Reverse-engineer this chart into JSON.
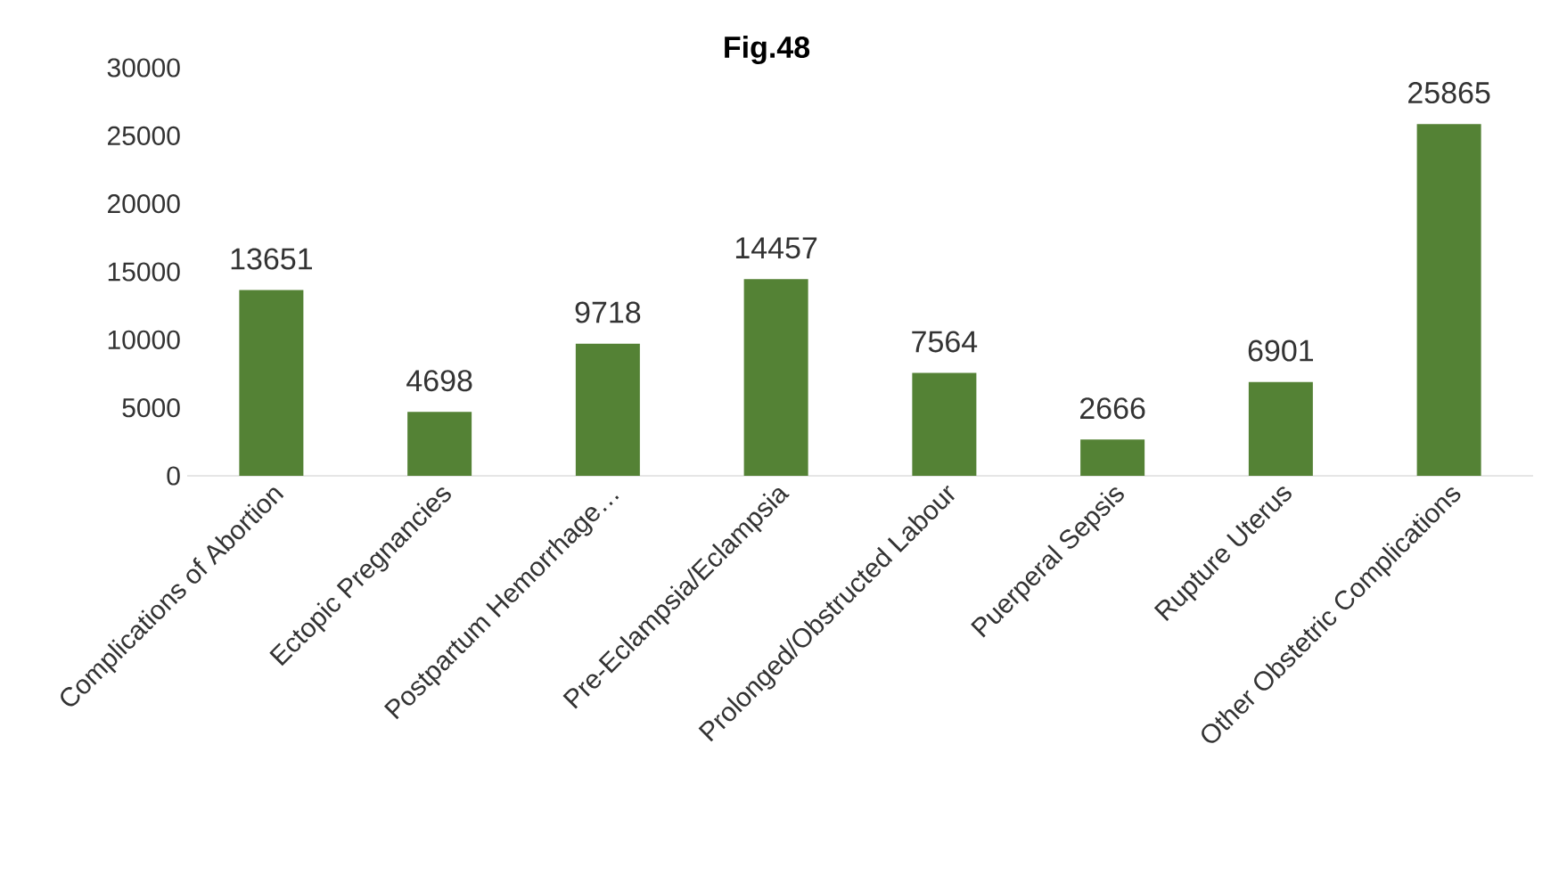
{
  "chart_data": {
    "type": "bar",
    "title": "**Fig.48**",
    "categories": [
      "Complications of Abortion",
      "Ectopic Pregnancies",
      "Postpartum Hemorrhage…",
      "Pre-Eclampsia/Eclampsia",
      "Prolonged/Obstructed Labour",
      "Puerperal Sepsis",
      "Rupture Uterus",
      "Other Obstetric Complications"
    ],
    "values": [
      13651,
      4698,
      9718,
      14457,
      7564,
      2666,
      6901,
      25865
    ],
    "color": "#548235",
    "data_labels": true,
    "ylim": [
      0,
      30000
    ],
    "yticks": [
      0,
      5000,
      10000,
      15000,
      20000,
      25000,
      30000
    ]
  }
}
